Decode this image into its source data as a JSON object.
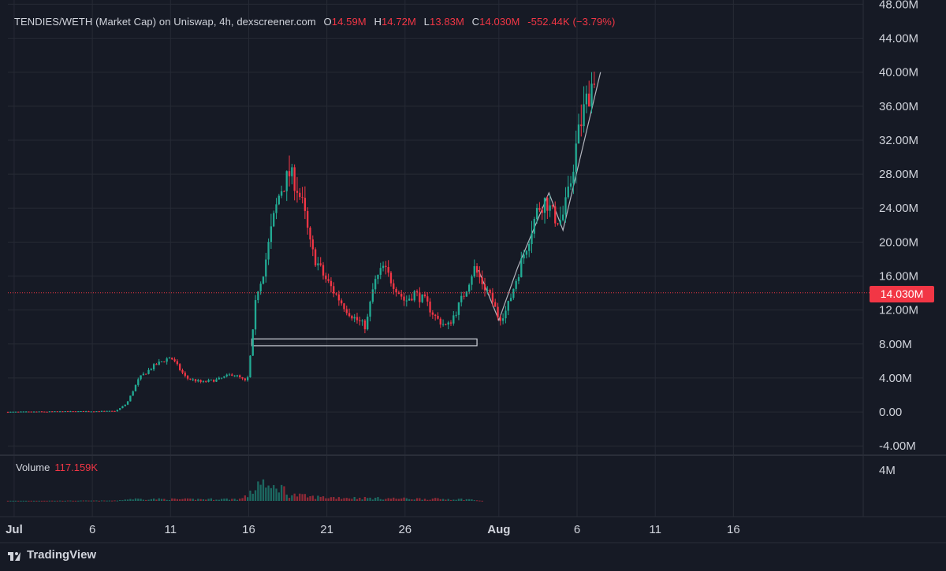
{
  "legend": {
    "symbol": "TENDIES/WETH (Market Cap) on Uniswap, 4h, dexscreener.com",
    "open_key": "O",
    "open": "14.59M",
    "high_key": "H",
    "high": "14.72M",
    "low_key": "L",
    "low": "13.83M",
    "close_key": "C",
    "close": "14.030M",
    "change": "-552.44K (−3.79%)"
  },
  "volume_legend": {
    "label": "Volume",
    "value": "117.159K"
  },
  "last_price_tag": "14.030M",
  "brand": {
    "name": "TradingView",
    "icon": "tradingview-logo-icon"
  },
  "colors": {
    "up": "#22ab94",
    "down": "#f23645",
    "background": "#161a25",
    "grid": "#262a35",
    "text": "#d1d4dc"
  },
  "chart_data": {
    "type": "candlestick",
    "y_axis": {
      "ticks": [
        "48.00M",
        "44.00M",
        "40.00M",
        "36.00M",
        "32.00M",
        "28.00M",
        "24.00M",
        "20.00M",
        "16.00M",
        "12.00M",
        "8.00M",
        "4.00M",
        "0.00",
        "-4.00M"
      ],
      "tick_values": [
        48,
        44,
        40,
        36,
        32,
        28,
        24,
        20,
        16,
        12,
        8,
        4,
        0,
        -4
      ],
      "unit": "M",
      "range": [
        -5,
        48.5
      ]
    },
    "volume_axis": {
      "ticks": [
        "4M"
      ],
      "tick_values": [
        4
      ]
    },
    "x_axis": {
      "ticks": [
        "Jul",
        "6",
        "11",
        "16",
        "21",
        "26",
        "Aug",
        "6",
        "11",
        "16"
      ],
      "tick_days": [
        1,
        6,
        11,
        16,
        21,
        26,
        32,
        37,
        42,
        47
      ],
      "bold": [
        "Jul",
        "Aug"
      ],
      "range_days": [
        0.6,
        55.3
      ]
    },
    "last_price": 14.03,
    "series_anchors_days_value": [
      [
        0.6,
        0.0
      ],
      [
        7.5,
        0.1
      ],
      [
        8.2,
        1.0
      ],
      [
        9,
        4.0
      ],
      [
        10,
        5.5
      ],
      [
        11,
        6.5
      ],
      [
        12,
        4.0
      ],
      [
        13,
        3.5
      ],
      [
        14,
        3.8
      ],
      [
        15,
        4.5
      ],
      [
        15.9,
        3.5
      ],
      [
        16.2,
        8
      ],
      [
        16.5,
        14
      ],
      [
        17,
        17
      ],
      [
        17.5,
        22
      ],
      [
        18,
        26
      ],
      [
        18.6,
        28
      ],
      [
        19,
        27
      ],
      [
        19.5,
        24
      ],
      [
        20,
        19
      ],
      [
        20.8,
        16
      ],
      [
        21.5,
        14
      ],
      [
        22.3,
        12
      ],
      [
        22.8,
        11
      ],
      [
        23.5,
        10
      ],
      [
        24,
        15
      ],
      [
        24.6,
        17
      ],
      [
        25.3,
        15
      ],
      [
        26,
        13
      ],
      [
        26.6,
        14
      ],
      [
        27.3,
        13
      ],
      [
        28,
        11
      ],
      [
        28.7,
        10
      ],
      [
        29.3,
        12
      ],
      [
        29.8,
        14
      ],
      [
        30.4,
        17
      ],
      [
        31,
        15
      ],
      [
        31.6,
        13
      ],
      [
        32,
        11
      ],
      [
        32.5,
        12
      ],
      [
        33,
        15
      ],
      [
        33.5,
        18
      ],
      [
        34,
        21
      ],
      [
        34.5,
        24
      ],
      [
        35,
        25
      ],
      [
        35.5,
        23
      ],
      [
        36,
        22.5
      ],
      [
        36.5,
        26
      ],
      [
        37,
        32
      ],
      [
        37.5,
        36
      ],
      [
        38,
        39
      ],
      [
        38.2,
        40.5
      ]
    ],
    "volume_anchors_days_value": [
      [
        0.6,
        0.02
      ],
      [
        7.5,
        0.05
      ],
      [
        8.5,
        0.3
      ],
      [
        12,
        0.25
      ],
      [
        15.5,
        0.3
      ],
      [
        16.2,
        1.2
      ],
      [
        16.8,
        3.6
      ],
      [
        17.2,
        1.5
      ],
      [
        18,
        2.4
      ],
      [
        18.5,
        1.0
      ],
      [
        20,
        0.6
      ],
      [
        24,
        0.4
      ],
      [
        30,
        0.25
      ],
      [
        31,
        0.0
      ]
    ],
    "annotations": [
      {
        "type": "rectangle",
        "from_day": 16.2,
        "to_day": 30.6,
        "from_value": 7.8,
        "to_value": 8.6
      },
      {
        "type": "polyline",
        "points": [
          [
            30.7,
            16.7
          ],
          [
            32.0,
            10.8
          ],
          [
            33.2,
            17.0
          ],
          [
            35.2,
            25.8
          ],
          [
            36.1,
            21.4
          ],
          [
            38.5,
            40.0
          ]
        ]
      }
    ]
  }
}
